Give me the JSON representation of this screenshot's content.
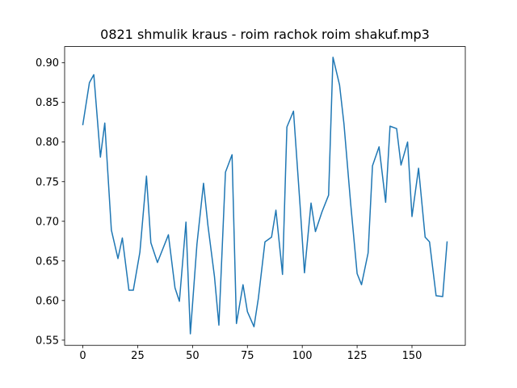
{
  "chart_data": {
    "type": "line",
    "title": "0821 shmulik kraus - roim rachok roim shakuf.mp3",
    "xlabel": "",
    "ylabel": "",
    "xlim": [
      -8.3,
      174.3
    ],
    "ylim": [
      0.5435,
      0.9205
    ],
    "xticks": [
      0,
      25,
      50,
      75,
      100,
      125,
      150
    ],
    "yticks": [
      0.55,
      0.6,
      0.65,
      0.7,
      0.75,
      0.8,
      0.85,
      0.9
    ],
    "ytick_format": "2dp",
    "grid": false,
    "line_color": "#1f77b4",
    "series": [
      {
        "x": [
          0,
          3,
          5,
          8,
          10,
          13,
          16,
          18,
          21,
          23,
          26,
          29,
          31,
          34,
          36,
          39,
          42,
          44,
          47,
          49,
          52,
          55,
          57,
          60,
          62,
          65,
          68,
          70,
          73,
          75,
          78,
          80,
          83,
          86,
          88,
          91,
          93,
          96,
          99,
          101,
          104,
          106,
          109,
          112,
          114,
          117,
          119,
          122,
          125,
          127,
          130,
          132,
          135,
          138,
          140,
          143,
          145,
          148,
          150,
          153,
          156,
          158,
          161,
          164,
          166
        ],
        "values": [
          0.822,
          0.875,
          0.885,
          0.781,
          0.824,
          0.689,
          0.653,
          0.679,
          0.613,
          0.613,
          0.661,
          0.757,
          0.673,
          0.648,
          0.662,
          0.683,
          0.616,
          0.599,
          0.699,
          0.558,
          0.671,
          0.748,
          0.695,
          0.63,
          0.569,
          0.762,
          0.784,
          0.571,
          0.62,
          0.586,
          0.567,
          0.603,
          0.674,
          0.68,
          0.714,
          0.633,
          0.819,
          0.839,
          0.72,
          0.635,
          0.723,
          0.687,
          0.712,
          0.733,
          0.907,
          0.872,
          0.823,
          0.724,
          0.634,
          0.62,
          0.66,
          0.77,
          0.794,
          0.724,
          0.82,
          0.817,
          0.771,
          0.8,
          0.706,
          0.767,
          0.68,
          0.674,
          0.606,
          0.605,
          0.674
        ]
      }
    ]
  }
}
